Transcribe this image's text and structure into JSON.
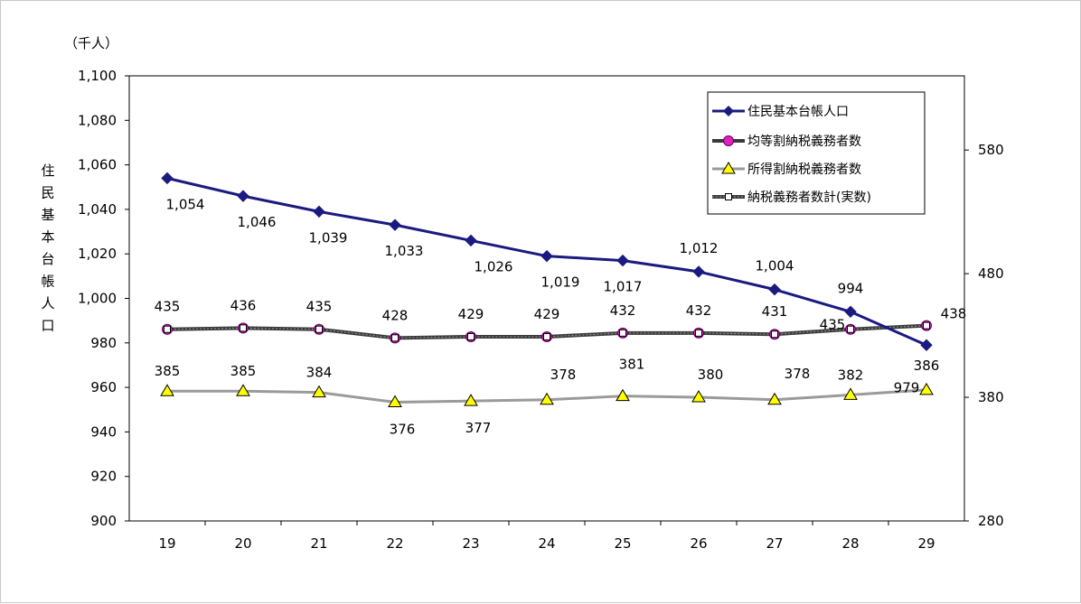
{
  "chart_data": {
    "type": "line",
    "unit_label": "（千人）",
    "ylabel": "住民基本台帳人口",
    "categories": [
      "19",
      "20",
      "21",
      "22",
      "23",
      "24",
      "25",
      "26",
      "27",
      "28",
      "29"
    ],
    "ylim_left": [
      900,
      1100
    ],
    "yticks_left": [
      "900",
      "920",
      "940",
      "960",
      "980",
      "1,000",
      "1,020",
      "1,040",
      "1,060",
      "1,080",
      "1,100"
    ],
    "ylim_right": [
      280,
      640
    ],
    "yticks_right": [
      "280",
      "380",
      "480",
      "580"
    ],
    "legend_position": "top-right",
    "grid": false,
    "colors": {
      "population": "#1a1a80",
      "kinto": "#e020c0",
      "shotoku": "#9a9a9a",
      "shotoku_marker": "#ffff00",
      "total": "#3a3a3a"
    },
    "series": [
      {
        "name": "住民基本台帳人口",
        "axis": "left",
        "values": [
          1054,
          1046,
          1039,
          1033,
          1026,
          1019,
          1017,
          1012,
          1004,
          994,
          979
        ],
        "labels": [
          "1,054",
          "1,046",
          "1,039",
          "1,033",
          "1,026",
          "1,019",
          "1,017",
          "1,012",
          "1,004",
          "994",
          "979"
        ]
      },
      {
        "name": "均等割納税義務者数",
        "axis": "right",
        "values": [
          435,
          436,
          435,
          428,
          429,
          429,
          432,
          432,
          431,
          435,
          438
        ],
        "labels": [
          "435",
          "436",
          "435",
          "428",
          "429",
          "429",
          "432",
          "432",
          "431",
          "435",
          "438"
        ]
      },
      {
        "name": "所得割納税義務者数",
        "axis": "right",
        "values": [
          385,
          385,
          384,
          376,
          377,
          378,
          381,
          380,
          378,
          382,
          386
        ],
        "labels": [
          "385",
          "385",
          "384",
          "376",
          "377",
          "378",
          "381",
          "380",
          "378",
          "382",
          "386"
        ]
      },
      {
        "name": "納税義務者数計(実数)",
        "axis": "right",
        "values": [
          435,
          436,
          435,
          428,
          429,
          429,
          432,
          432,
          431,
          435,
          438
        ],
        "labels": []
      }
    ]
  }
}
